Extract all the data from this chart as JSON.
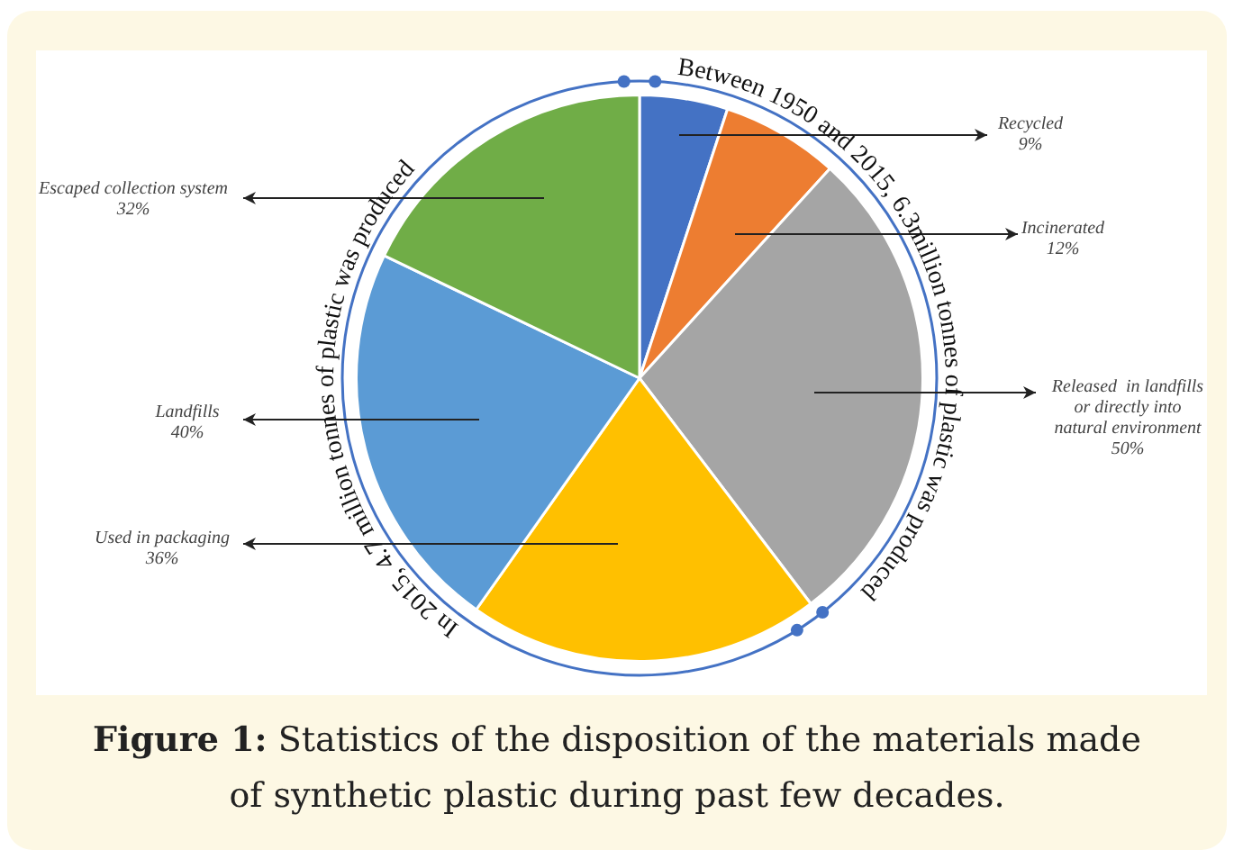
{
  "chart_data": {
    "type": "pie",
    "title": "Figure 1:",
    "categories": [
      "Recycled",
      "Incinerated",
      "Released  in landfills or directly into natural environment",
      "Used in packaging",
      "Landfills",
      "Escaped collection system"
    ],
    "values": [
      9,
      12,
      50,
      36,
      40,
      32
    ],
    "value_labels": [
      "9%",
      "12%",
      "50%",
      "36%",
      "40%",
      "32%"
    ],
    "colors": [
      "#4472c4",
      "#ed7d31",
      "#a5a5a5",
      "#ffc000",
      "#5b9bd5",
      "#70ad47"
    ],
    "legend": false,
    "annotations": [
      "Between 1950 and 2015, 6.3million tonnes of plastic was produced",
      "In 2015, 4.7 million tonnes of plastic was produced",
      "Statistics of the disposition of the materials made of synthetic plastic during past few decades."
    ]
  }
}
